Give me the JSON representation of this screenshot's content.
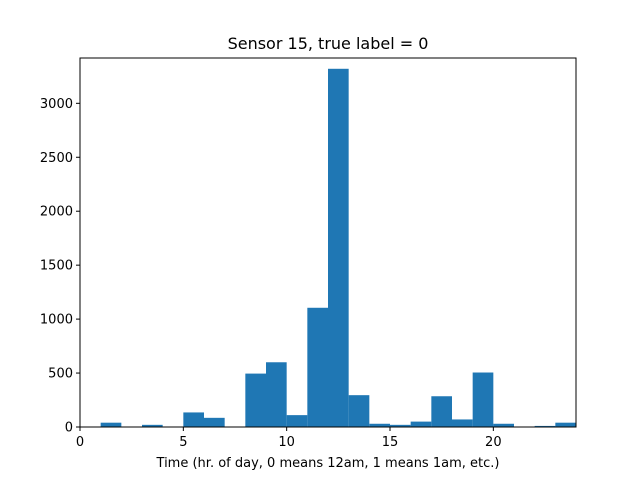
{
  "chart_data": {
    "type": "bar",
    "title": "Sensor 15, true label = 0",
    "xlabel": "Time (hr. of day, 0 means 12am, 1 means 1am, etc.)",
    "ylabel": "",
    "xlim": [
      0,
      24
    ],
    "ylim": [
      0,
      3420
    ],
    "xticks": [
      0,
      5,
      10,
      15,
      20
    ],
    "yticks": [
      0,
      500,
      1000,
      1500,
      2000,
      2500,
      3000
    ],
    "bin_width": 1,
    "bins": [
      {
        "x0": 0,
        "value": 0
      },
      {
        "x0": 1,
        "value": 40
      },
      {
        "x0": 2,
        "value": 0
      },
      {
        "x0": 3,
        "value": 20
      },
      {
        "x0": 4,
        "value": 0
      },
      {
        "x0": 5,
        "value": 135
      },
      {
        "x0": 6,
        "value": 85
      },
      {
        "x0": 7,
        "value": 0
      },
      {
        "x0": 8,
        "value": 495
      },
      {
        "x0": 9,
        "value": 600
      },
      {
        "x0": 10,
        "value": 110
      },
      {
        "x0": 11,
        "value": 1105
      },
      {
        "x0": 12,
        "value": 3320
      },
      {
        "x0": 13,
        "value": 295
      },
      {
        "x0": 14,
        "value": 30
      },
      {
        "x0": 15,
        "value": 20
      },
      {
        "x0": 16,
        "value": 50
      },
      {
        "x0": 17,
        "value": 285
      },
      {
        "x0": 18,
        "value": 70
      },
      {
        "x0": 19,
        "value": 505
      },
      {
        "x0": 20,
        "value": 30
      },
      {
        "x0": 21,
        "value": 0
      },
      {
        "x0": 22,
        "value": 10
      },
      {
        "x0": 23,
        "value": 40
      }
    ],
    "bar_color": "#1f77b4",
    "grid": false,
    "legend": "none"
  }
}
